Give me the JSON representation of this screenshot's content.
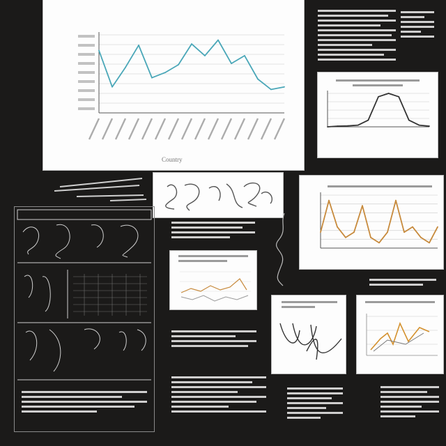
{
  "main_chart": {
    "title": "",
    "ylabel": "",
    "xlabel": "Country"
  },
  "colors": {
    "main_line": "#4aa7b8",
    "orange_line": "#c78a3c",
    "board_bg": "#1b1a19"
  },
  "chart_data": [
    {
      "type": "line",
      "title": "",
      "xlabel": "Country",
      "ylabel": "",
      "x": [
        1,
        2,
        3,
        4,
        5,
        6,
        7,
        8,
        9,
        10,
        11,
        12,
        13,
        14,
        15
      ],
      "series": [
        {
          "values": [
            9.8,
            7.0,
            8.5,
            10.2,
            7.7,
            8.1,
            8.7,
            10.3,
            9.4,
            10.6,
            8.8,
            9.4,
            7.6,
            6.8,
            7.0
          ]
        }
      ],
      "ylim": [
        5,
        11
      ],
      "grid": true
    },
    {
      "type": "line",
      "title": "",
      "x": [
        0,
        1,
        2,
        3,
        4,
        5,
        6,
        7,
        8,
        9,
        10
      ],
      "series": [
        {
          "values": [
            0,
            0.02,
            0.03,
            0.05,
            0.2,
            0.9,
            1.0,
            0.9,
            0.2,
            0.05,
            0.02
          ]
        }
      ],
      "ylim": [
        0,
        1
      ],
      "grid": true
    },
    {
      "type": "line",
      "title": "",
      "x": [
        1,
        2,
        3,
        4,
        5,
        6,
        7,
        8,
        9,
        10,
        11,
        12,
        13,
        14,
        15
      ],
      "series": [
        {
          "values": [
            0.3,
            0.9,
            0.4,
            0.2,
            0.3,
            0.8,
            0.2,
            0.1,
            0.3,
            0.9,
            0.3,
            0.4,
            0.2,
            0.1,
            0.4
          ]
        }
      ],
      "ylim": [
        0,
        1
      ],
      "grid": true
    }
  ]
}
